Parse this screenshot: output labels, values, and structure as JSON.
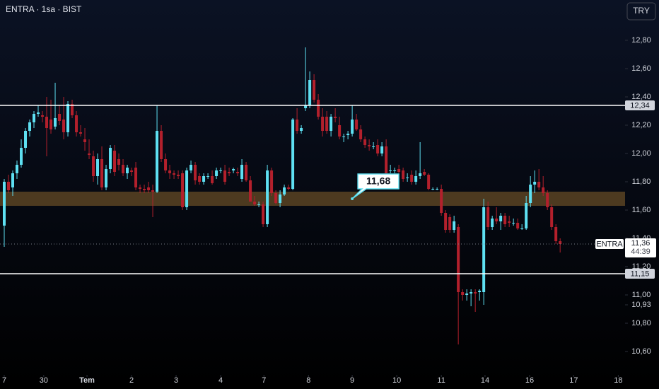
{
  "chart_data": {
    "type": "candlestick",
    "title": "ENTRA · 1sa · BIST",
    "currency": "TRY",
    "up_color": "#5ee0f2",
    "down_color": "#b3202c",
    "open": [
      11.49,
      11.8,
      11.76,
      11.86,
      11.92,
      12.04,
      12.16,
      12.22,
      12.28,
      12.27,
      12.26,
      12.24,
      12.19,
      12.28,
      12.24,
      12.15,
      12.35,
      12.27,
      12.15,
      12.1,
      12.0,
      11.98,
      11.84,
      11.96,
      11.76,
      11.89,
      12.02,
      11.96,
      11.92,
      11.86,
      11.88,
      11.9,
      11.76,
      11.75,
      11.76,
      11.74,
      11.73,
      12.16,
      11.96,
      11.88,
      11.86,
      11.85,
      11.86,
      11.62,
      11.88,
      11.92,
      11.84,
      11.8,
      11.84,
      11.84,
      11.84,
      11.88,
      11.88,
      11.87,
      11.88,
      11.87,
      11.82,
      11.92,
      11.81,
      11.66,
      11.64,
      11.64,
      11.5,
      11.88,
      11.72,
      11.65,
      11.71,
      11.76,
      11.75,
      12.24,
      12.16,
      12.32,
      12.34,
      12.52,
      12.38,
      12.26,
      12.26,
      12.16,
      12.26,
      12.2,
      12.12,
      12.13,
      12.14,
      12.24,
      12.17,
      12.1,
      12.06,
      12.05,
      12.06,
      12.0,
      12.05,
      11.88,
      11.88,
      11.89,
      11.88,
      11.83,
      11.85,
      11.8,
      11.84,
      11.87,
      11.85,
      11.75,
      11.75,
      11.75,
      11.58,
      11.55,
      11.46,
      11.48,
      11.02,
      11.0,
      11.01,
      11.02,
      11.02,
      11.02,
      11.62,
      11.48,
      11.54,
      11.52,
      11.56,
      11.52,
      11.51,
      11.51,
      11.47,
      11.47,
      11.65,
      11.78,
      11.8,
      11.76,
      11.72,
      11.62,
      11.48,
      11.38
    ],
    "high": [
      11.82,
      11.85,
      11.88,
      11.95,
      12.1,
      12.18,
      12.24,
      12.3,
      12.34,
      12.3,
      12.4,
      12.38,
      12.5,
      12.34,
      12.4,
      12.37,
      12.38,
      12.3,
      12.2,
      12.18,
      12.1,
      12.02,
      12.0,
      12.05,
      11.92,
      12.06,
      12.06,
      12.0,
      11.96,
      11.92,
      11.9,
      11.94,
      11.78,
      11.78,
      11.8,
      11.78,
      12.34,
      12.2,
      12.0,
      11.92,
      11.88,
      11.88,
      11.88,
      11.9,
      11.95,
      11.94,
      11.86,
      11.86,
      11.86,
      11.88,
      11.9,
      11.9,
      11.92,
      11.9,
      11.9,
      11.9,
      11.96,
      11.94,
      11.84,
      11.7,
      11.66,
      11.66,
      11.92,
      11.9,
      11.74,
      11.74,
      11.78,
      11.78,
      12.25,
      12.32,
      12.2,
      12.75,
      12.58,
      12.56,
      12.42,
      12.32,
      12.3,
      12.28,
      12.32,
      12.26,
      12.14,
      12.16,
      12.34,
      12.28,
      12.2,
      12.12,
      12.1,
      12.08,
      12.1,
      12.08,
      12.1,
      11.92,
      11.9,
      11.92,
      11.9,
      11.86,
      11.88,
      11.88,
      12.08,
      11.89,
      11.86,
      11.76,
      11.76,
      11.78,
      11.6,
      11.57,
      11.56,
      11.5,
      11.04,
      11.04,
      11.04,
      11.04,
      11.04,
      11.68,
      11.66,
      11.56,
      11.62,
      11.58,
      11.58,
      11.56,
      11.54,
      11.54,
      11.5,
      11.7,
      11.84,
      11.88,
      11.89,
      11.84,
      11.74,
      11.64,
      11.5,
      11.4
    ],
    "low": [
      11.34,
      11.72,
      11.7,
      11.82,
      11.9,
      12.0,
      12.12,
      12.18,
      12.26,
      12.22,
      11.98,
      12.14,
      12.17,
      12.2,
      12.1,
      12.12,
      12.25,
      12.12,
      12.12,
      12.02,
      11.96,
      11.8,
      11.78,
      11.74,
      11.74,
      11.86,
      11.84,
      11.88,
      11.84,
      11.82,
      11.84,
      11.74,
      11.72,
      11.72,
      11.72,
      11.55,
      11.72,
      11.94,
      11.86,
      11.82,
      11.82,
      11.82,
      11.6,
      11.6,
      11.86,
      11.78,
      11.78,
      11.78,
      11.82,
      11.78,
      11.82,
      11.86,
      11.78,
      11.84,
      11.86,
      11.84,
      11.8,
      11.8,
      11.66,
      11.63,
      11.62,
      11.48,
      11.48,
      11.7,
      11.64,
      11.62,
      11.7,
      11.74,
      11.74,
      12.14,
      12.14,
      12.3,
      12.32,
      12.36,
      12.24,
      12.12,
      12.14,
      12.12,
      12.22,
      12.1,
      12.08,
      12.1,
      12.12,
      12.16,
      12.08,
      12.04,
      12.02,
      12.03,
      11.98,
      11.98,
      11.86,
      11.86,
      11.86,
      11.86,
      11.8,
      11.8,
      11.78,
      11.78,
      11.82,
      11.84,
      11.74,
      11.74,
      11.74,
      11.56,
      11.44,
      11.44,
      11.44,
      10.65,
      10.96,
      10.96,
      10.92,
      10.88,
      10.96,
      10.93,
      11.46,
      11.46,
      11.5,
      11.46,
      11.48,
      11.48,
      11.49,
      11.46,
      11.46,
      11.46,
      11.62,
      11.72,
      11.74,
      11.7,
      11.6,
      11.46,
      11.36,
      11.3
    ],
    "close": [
      11.8,
      11.74,
      11.86,
      11.92,
      12.04,
      12.16,
      12.22,
      12.28,
      12.29,
      12.26,
      12.18,
      12.17,
      12.25,
      12.23,
      12.15,
      12.35,
      12.27,
      12.15,
      12.14,
      12.08,
      11.99,
      11.84,
      11.96,
      11.76,
      11.89,
      12.04,
      11.87,
      11.92,
      11.86,
      11.9,
      11.87,
      11.76,
      11.75,
      11.74,
      11.74,
      11.73,
      12.16,
      11.96,
      11.88,
      11.86,
      11.85,
      11.84,
      11.62,
      11.88,
      11.92,
      11.81,
      11.8,
      11.84,
      11.84,
      11.79,
      11.88,
      11.88,
      11.8,
      11.86,
      11.89,
      11.86,
      11.92,
      11.81,
      11.66,
      11.64,
      11.64,
      11.5,
      11.88,
      11.72,
      11.65,
      11.71,
      11.76,
      11.75,
      12.24,
      12.16,
      12.18,
      12.34,
      12.52,
      12.38,
      12.26,
      12.16,
      12.16,
      12.26,
      12.25,
      12.12,
      12.12,
      12.14,
      12.24,
      12.17,
      12.1,
      12.06,
      12.05,
      12.05,
      12.0,
      12.05,
      11.86,
      11.88,
      11.88,
      11.87,
      11.82,
      11.83,
      11.8,
      11.84,
      11.86,
      11.85,
      11.75,
      11.75,
      11.75,
      11.58,
      11.46,
      11.46,
      11.52,
      11.02,
      11.0,
      11.01,
      11.02,
      11.01,
      11.03,
      11.62,
      11.48,
      11.54,
      11.52,
      11.56,
      11.5,
      11.51,
      11.51,
      11.47,
      11.47,
      11.65,
      11.78,
      11.8,
      11.76,
      11.72,
      11.62,
      11.48,
      11.38,
      11.36
    ],
    "xlim": [
      -1,
      146.3
    ],
    "xticks": [
      {
        "value": 0,
        "label": "7"
      },
      {
        "value": 9.3,
        "label": "30"
      },
      {
        "value": 19.5,
        "label": "Tem"
      },
      {
        "value": 30,
        "label": "2"
      },
      {
        "value": 40.5,
        "label": "3"
      },
      {
        "value": 51,
        "label": "4"
      },
      {
        "value": 61.2,
        "label": "7"
      },
      {
        "value": 71.7,
        "label": "8"
      },
      {
        "value": 82,
        "label": "9"
      },
      {
        "value": 92.5,
        "label": "10"
      },
      {
        "value": 103,
        "label": "11"
      },
      {
        "value": 113.3,
        "label": "14"
      },
      {
        "value": 123.8,
        "label": "16"
      },
      {
        "value": 134.2,
        "label": "17"
      },
      {
        "value": 144.7,
        "label": "18"
      }
    ],
    "ylim": [
      10.435,
      13.085
    ],
    "yticks": [
      {
        "value": 12.8,
        "label": "12,80"
      },
      {
        "value": 12.6,
        "label": "12,60"
      },
      {
        "value": 12.4,
        "label": "12,40"
      },
      {
        "value": 12.2,
        "label": "12,20"
      },
      {
        "value": 12.0,
        "label": "12,00"
      },
      {
        "value": 11.8,
        "label": "11,80"
      },
      {
        "value": 11.6,
        "label": "11,60"
      },
      {
        "value": 11.4,
        "label": "11,40"
      },
      {
        "value": 11.2,
        "label": "11,20"
      },
      {
        "value": 11.0,
        "label": "11,00"
      },
      {
        "value": 10.93,
        "label": "10,93"
      },
      {
        "value": 10.8,
        "label": "10,80"
      },
      {
        "value": 10.6,
        "label": "10,60"
      }
    ],
    "levels": [
      {
        "value": 12.34,
        "label": "12,34"
      },
      {
        "value": 11.15,
        "label": "11,15"
      }
    ],
    "zone": [
      11.63,
      11.73
    ],
    "zone_color": "#5a4323",
    "annotation": {
      "value": 11.68,
      "label": "11,68",
      "x": 82
    },
    "last_price": {
      "symbol": "ENTRA",
      "value": 11.36,
      "label": "11,36",
      "countdown": "44:39"
    }
  }
}
